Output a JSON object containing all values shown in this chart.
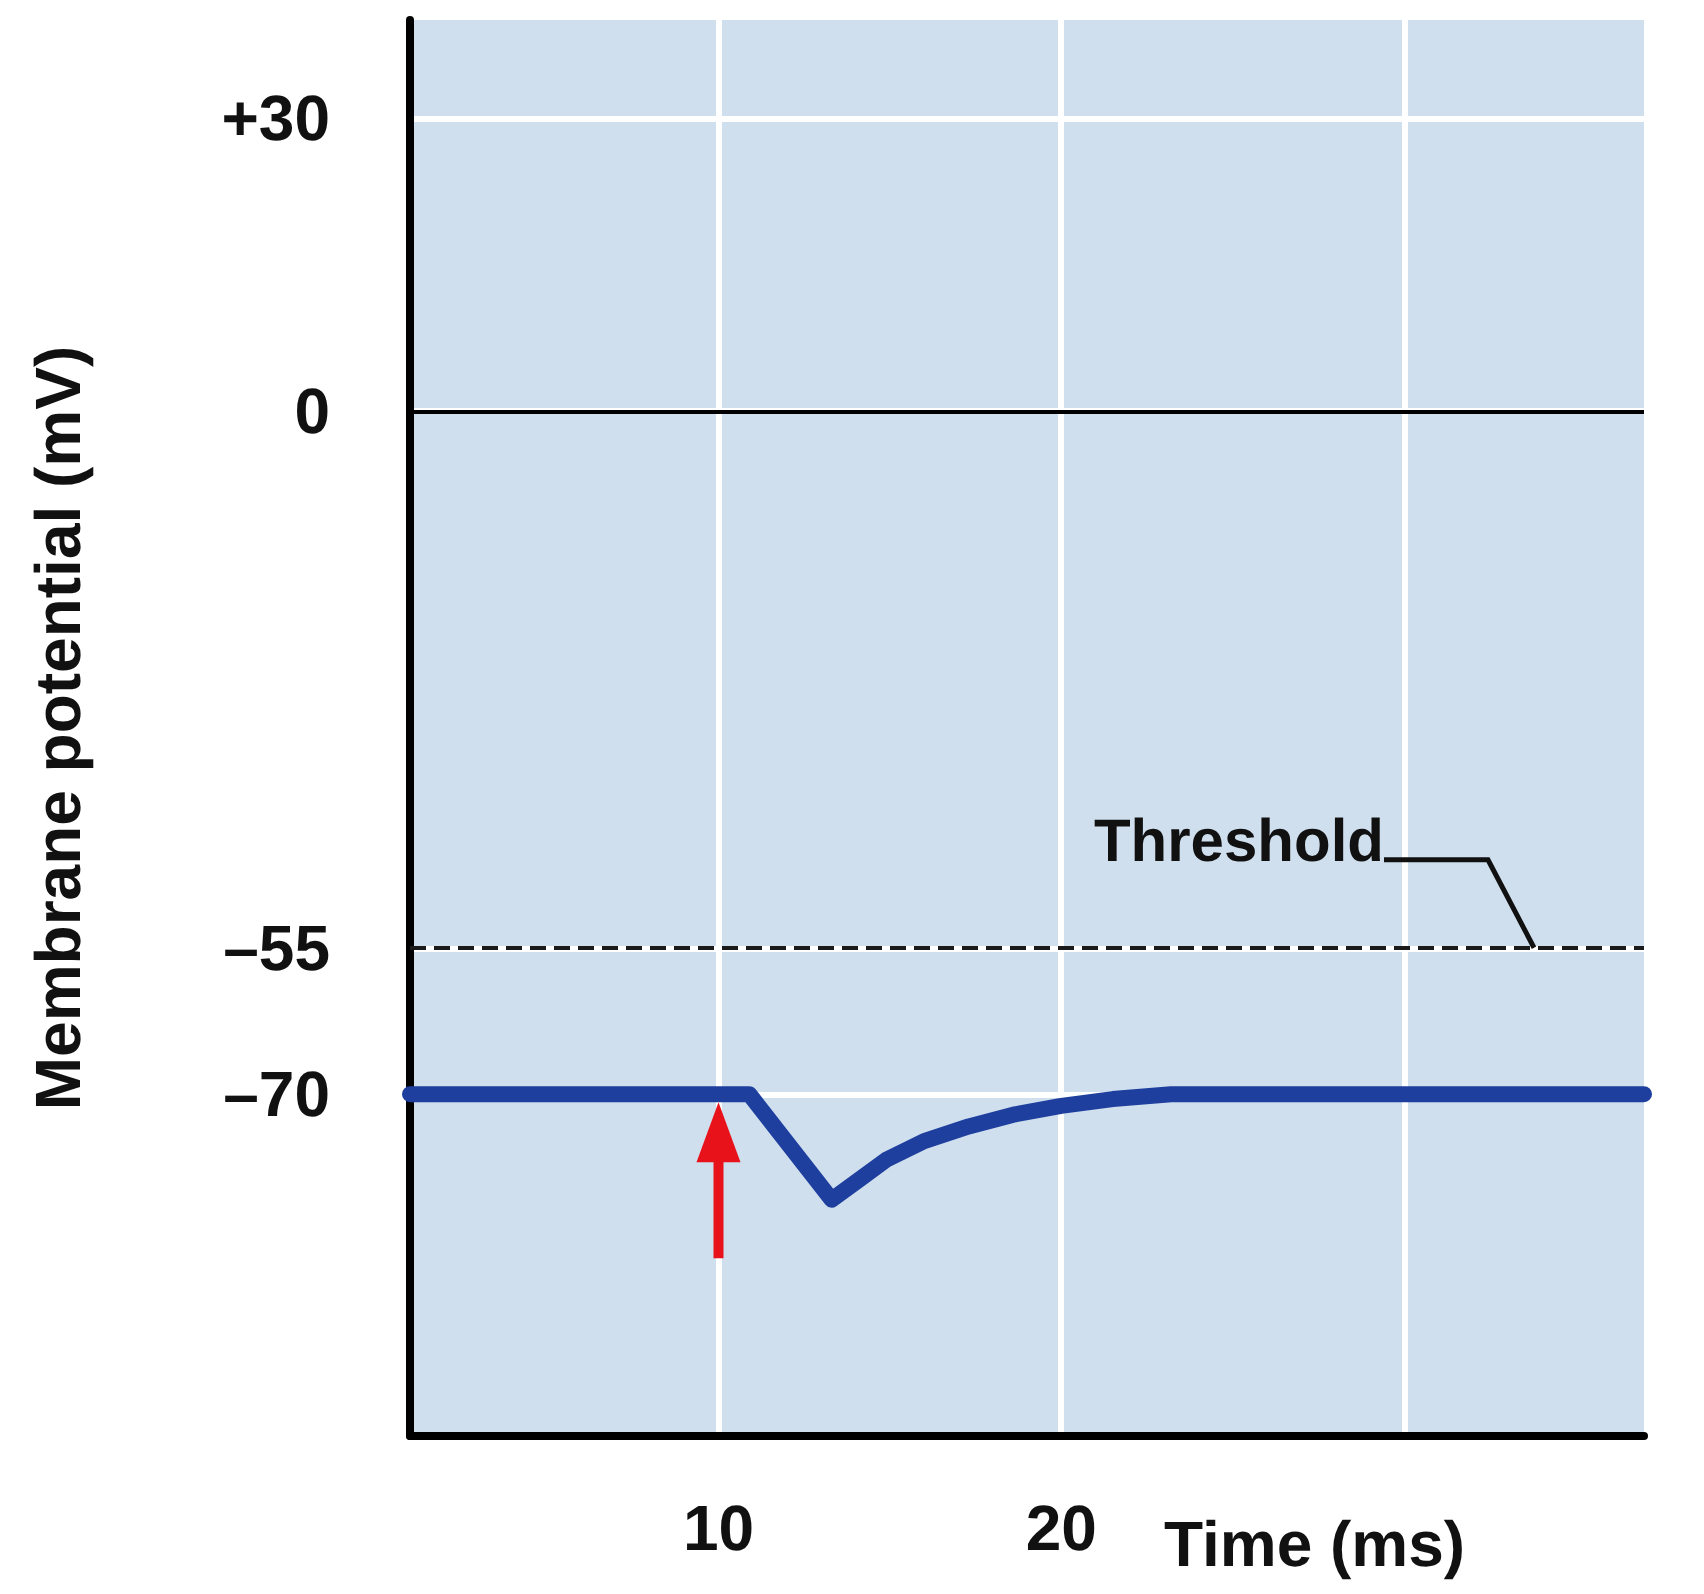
{
  "chart_data": {
    "type": "line",
    "xlabel": "Time (ms)",
    "ylabel": "Membrane potential (mV)",
    "x": [
      1,
      10.9,
      13.3,
      14.2,
      14.9,
      16,
      17.3,
      18.6,
      20,
      21.5,
      23.2,
      37
    ],
    "series": [
      {
        "color": "#1e3f9e",
        "values": [
          -70,
          -70,
          -80.8,
          -78.5,
          -76.7,
          -74.8,
          -73.3,
          -72.1,
          -71.2,
          -70.5,
          -70,
          -70
        ]
      }
    ],
    "xlim": [
      1,
      37
    ],
    "xticks": [
      10,
      20,
      {
        "value": 30,
        "label": null
      }
    ],
    "ylim": [
      -105,
      40
    ],
    "yticks": [
      {
        "value": 30,
        "label": "+30"
      },
      0,
      {
        "value": -55,
        "label": "–55"
      },
      {
        "value": -70,
        "label": "–70"
      }
    ],
    "ref_lines": [
      {
        "axis": "y",
        "value": 0,
        "color": "#000000",
        "line_style": "solid"
      },
      {
        "axis": "y",
        "value": -55,
        "label": "Threshold",
        "color": "#1a1a1a",
        "line_style": "dashed"
      }
    ],
    "grid": true,
    "line_style": "solid"
  }
}
